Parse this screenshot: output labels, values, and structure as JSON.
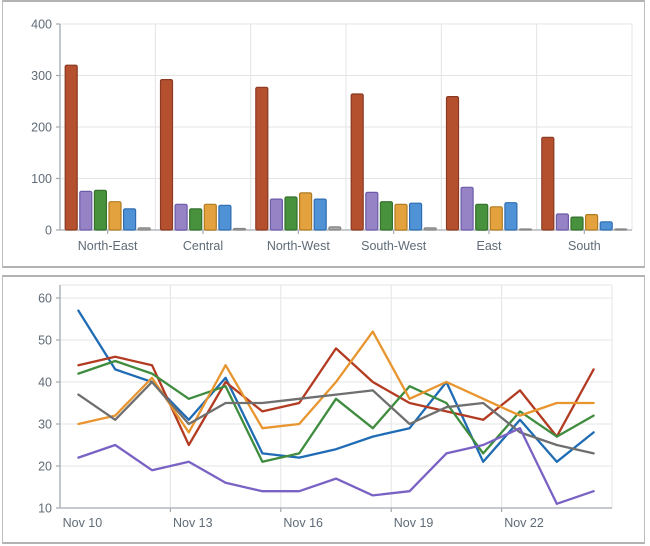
{
  "page": {
    "background": "#ffffff",
    "panel_border": "#b3b3b3"
  },
  "axis_style": {
    "tick_label_color": "#5f6b76",
    "grid_color": "#e4e4e4",
    "axis_color": "#a3aab1",
    "font_size": 12.5
  },
  "chart_data": [
    {
      "type": "bar",
      "title": "",
      "legend": "none",
      "grid": true,
      "categories": [
        "North-East",
        "Central",
        "North-West",
        "South-West",
        "East",
        "South"
      ],
      "series": [
        {
          "name": "red",
          "fill": "#b5502f",
          "stroke": "#8a3a22",
          "values": [
            320,
            292,
            277,
            264,
            259,
            180
          ]
        },
        {
          "name": "purple",
          "fill": "#9583c6",
          "stroke": "#6c5ba8",
          "values": [
            75,
            50,
            60,
            73,
            83,
            31
          ]
        },
        {
          "name": "green",
          "fill": "#48913d",
          "stroke": "#33702c",
          "values": [
            77,
            41,
            64,
            55,
            50,
            25
          ]
        },
        {
          "name": "orange",
          "fill": "#e3a23d",
          "stroke": "#b07c22",
          "values": [
            55,
            50,
            72,
            50,
            45,
            30
          ]
        },
        {
          "name": "blue",
          "fill": "#4f93d6",
          "stroke": "#2f6db0",
          "values": [
            41,
            48,
            60,
            52,
            53,
            16
          ]
        },
        {
          "name": "gray",
          "fill": "#a6a6a6",
          "stroke": "#868686",
          "values": [
            4,
            3,
            6,
            4,
            2,
            2
          ]
        }
      ],
      "ylim": [
        0,
        400
      ],
      "y_ticks": [
        0,
        100,
        200,
        300,
        400
      ]
    },
    {
      "type": "line",
      "title": "",
      "legend": "none",
      "grid": true,
      "x": [
        "Nov 10",
        "Nov 11",
        "Nov 12",
        "Nov 13",
        "Nov 14",
        "Nov 15",
        "Nov 16",
        "Nov 17",
        "Nov 18",
        "Nov 19",
        "Nov 20",
        "Nov 21",
        "Nov 22",
        "Nov 23",
        "Nov 24"
      ],
      "x_axis_labels": [
        "Nov 10",
        "Nov 13",
        "Nov 16",
        "Nov 19",
        "Nov 22"
      ],
      "x_label_every": 3,
      "series": [
        {
          "name": "blue",
          "color": "#1f6cb4",
          "values": [
            57,
            43,
            40,
            31,
            41,
            23,
            22,
            24,
            27,
            29,
            40,
            21,
            31,
            21,
            28
          ]
        },
        {
          "name": "red",
          "color": "#b23b22",
          "values": [
            44,
            46,
            44,
            25,
            40,
            33,
            35,
            48,
            40,
            35,
            33,
            31,
            38,
            27,
            43
          ]
        },
        {
          "name": "green",
          "color": "#3f8c3f",
          "values": [
            42,
            45,
            42,
            36,
            39,
            21,
            23,
            36,
            29,
            39,
            35,
            23,
            33,
            27,
            32
          ]
        },
        {
          "name": "orange",
          "color": "#e8952f",
          "values": [
            30,
            32,
            41,
            28,
            44,
            29,
            30,
            40,
            52,
            36,
            40,
            36,
            32,
            35,
            35
          ]
        },
        {
          "name": "gray",
          "color": "#6f6f6f",
          "values": [
            37,
            31,
            40,
            30,
            35,
            35,
            36,
            37,
            38,
            30,
            34,
            35,
            28,
            25,
            23
          ]
        },
        {
          "name": "purple",
          "color": "#7a62c4",
          "values": [
            22,
            25,
            19,
            21,
            16,
            14,
            14,
            17,
            13,
            14,
            23,
            25,
            29,
            11,
            14
          ]
        }
      ],
      "ylim": [
        10,
        60
      ],
      "y_ticks": [
        10,
        20,
        30,
        40,
        50,
        60
      ]
    }
  ]
}
